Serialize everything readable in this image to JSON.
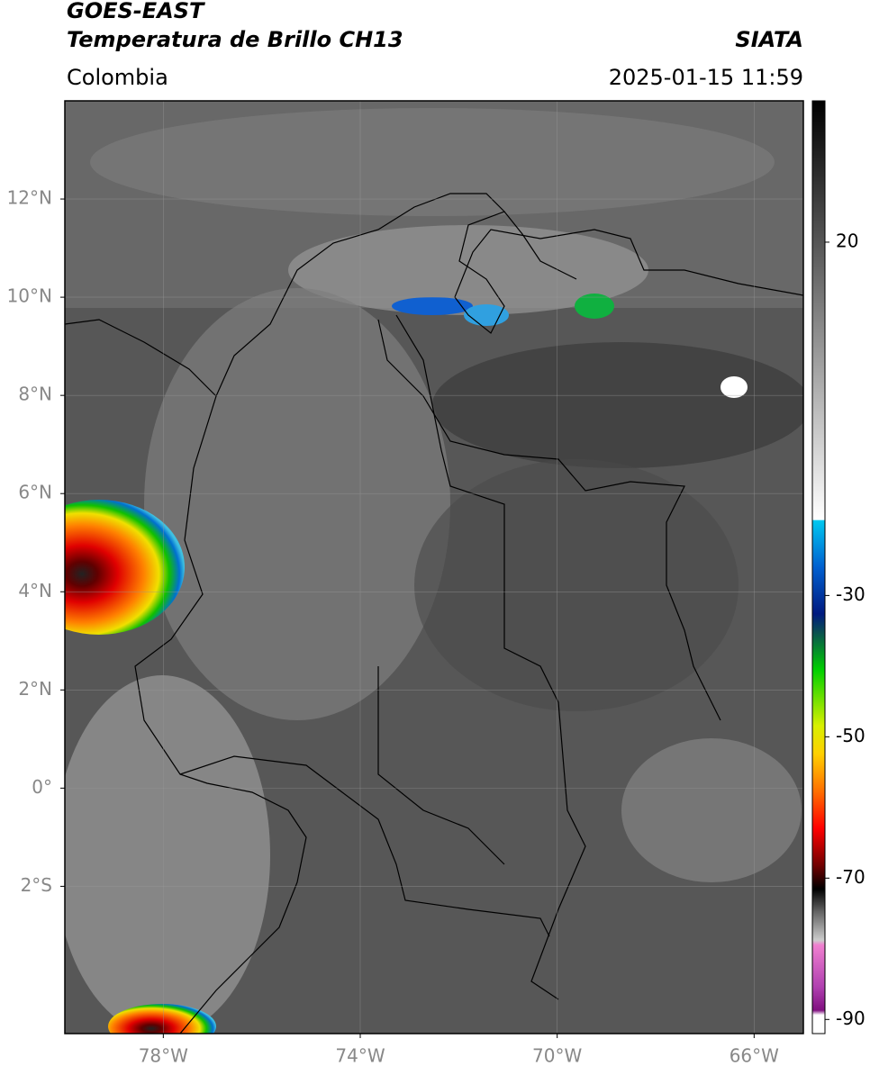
{
  "header": {
    "title": "GOES-EAST",
    "subtitle": "Temperatura de Brillo CH13",
    "org": "SIATA",
    "region": "Colombia",
    "datetime": "2025-01-15 11:59"
  },
  "map": {
    "xlim": [
      -80,
      -65
    ],
    "ylim": [
      -5,
      14
    ],
    "xticks": [
      {
        "value": -78,
        "label": "78°W"
      },
      {
        "value": -74,
        "label": "74°W"
      },
      {
        "value": -70,
        "label": "70°W"
      },
      {
        "value": -66,
        "label": "66°W"
      }
    ],
    "yticks": [
      {
        "value": 12,
        "label": "12°N"
      },
      {
        "value": 10,
        "label": "10°N"
      },
      {
        "value": 8,
        "label": "8°N"
      },
      {
        "value": 6,
        "label": "6°N"
      },
      {
        "value": 4,
        "label": "4°N"
      },
      {
        "value": 2,
        "label": "2°N"
      },
      {
        "value": 0,
        "label": "0°"
      },
      {
        "value": -2,
        "label": "2°S"
      }
    ],
    "grid": true
  },
  "colorbar": {
    "clim": [
      -92,
      40
    ],
    "ticks": [
      20,
      -30,
      -50,
      -70,
      -90
    ]
  }
}
